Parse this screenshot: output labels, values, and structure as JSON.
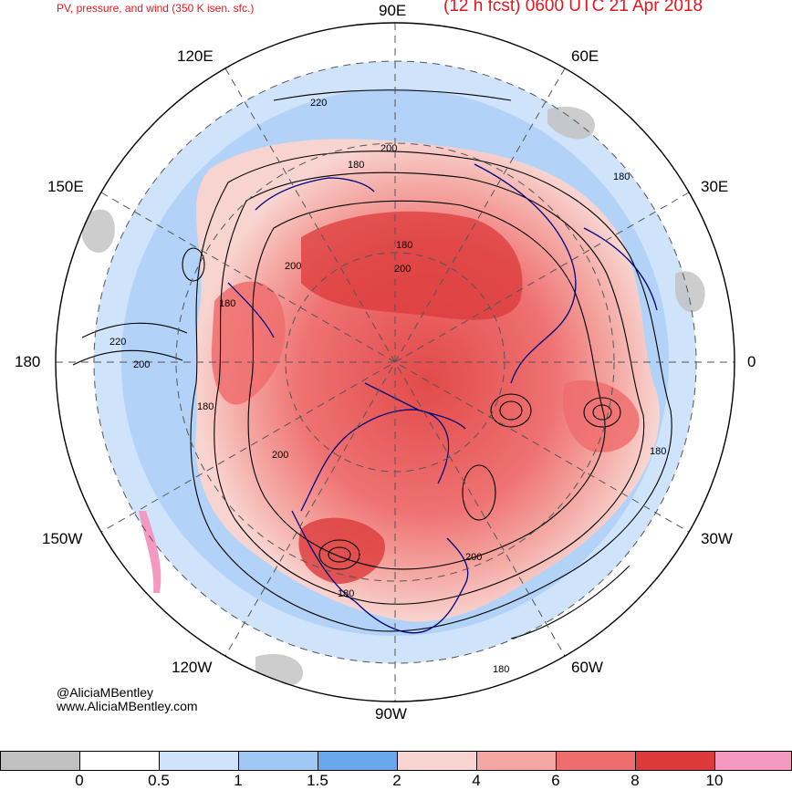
{
  "header": {
    "left_title": "PV, pressure, and wind (350 K isen. sfc.)",
    "right_title": "(12 h fcst) 0600 UTC 21 Apr 2018"
  },
  "map": {
    "projection": "north-polar-stereographic",
    "longitude_labels": [
      "90E",
      "120E",
      "60E",
      "150E",
      "30E",
      "180",
      "0",
      "150W",
      "30W",
      "120W",
      "60W",
      "90W"
    ],
    "contour_labels": [
      "220",
      "200",
      "180",
      "200",
      "180",
      "200",
      "180",
      "220",
      "200",
      "180",
      "200",
      "180",
      "180",
      "200",
      "180",
      "180"
    ]
  },
  "credits": {
    "handle": "@AliciaMBentley",
    "website": "www.AliciaMBentley.com"
  },
  "colorbar": {
    "ticks": [
      "0",
      "0.5",
      "1",
      "1.5",
      "2",
      "4",
      "6",
      "8",
      "10"
    ],
    "colors": [
      "#c0c0c0",
      "#ffffff",
      "#cfe3fb",
      "#9fc8f5",
      "#69a7ec",
      "#f8d4d0",
      "#f4a7a2",
      "#ee6d6d",
      "#dc3a3a",
      "#f49ac1"
    ]
  }
}
